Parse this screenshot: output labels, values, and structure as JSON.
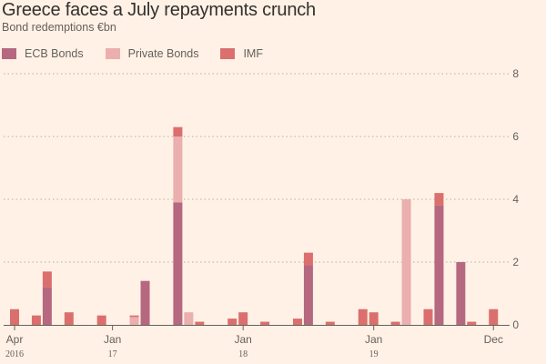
{
  "title": "Greece faces a July repayments crunch",
  "subtitle": "Bond redemptions €bn",
  "legend": [
    {
      "label": "ECB Bonds",
      "color": "#b5687f"
    },
    {
      "label": "Private Bonds",
      "color": "#eaafae"
    },
    {
      "label": "IMF",
      "color": "#db6f6e"
    }
  ],
  "chart_data": {
    "type": "bar",
    "stacked": true,
    "categories": [
      "2016-04",
      "2016-05",
      "2016-06",
      "2016-07",
      "2016-08",
      "2016-09",
      "2016-10",
      "2016-11",
      "2016-12",
      "2017-01",
      "2017-02",
      "2017-03",
      "2017-04",
      "2017-05",
      "2017-06",
      "2017-07",
      "2017-08",
      "2017-09",
      "2017-10",
      "2017-11",
      "2017-12",
      "2018-01",
      "2018-02",
      "2018-03",
      "2018-04",
      "2018-05",
      "2018-06",
      "2018-07",
      "2018-08",
      "2018-09",
      "2018-10",
      "2018-11",
      "2018-12",
      "2019-01",
      "2019-02",
      "2019-03",
      "2019-04",
      "2019-05",
      "2019-06",
      "2019-07",
      "2019-08",
      "2019-09",
      "2019-10",
      "2019-11",
      "2019-12"
    ],
    "series": [
      {
        "name": "ECB Bonds",
        "color": "#b5687f",
        "values": [
          0,
          0,
          0,
          1.2,
          0,
          0,
          0,
          0,
          0,
          0,
          0,
          0,
          1.4,
          0,
          0,
          3.9,
          0,
          0,
          0,
          0,
          0,
          0,
          0,
          0,
          0,
          0,
          0,
          1.9,
          0,
          0,
          0,
          0,
          0,
          0,
          0,
          0,
          0,
          0,
          0,
          3.8,
          0,
          2.0,
          0,
          0,
          0
        ]
      },
      {
        "name": "Private Bonds",
        "color": "#eaafae",
        "values": [
          0,
          0,
          0,
          0,
          0,
          0,
          0,
          0,
          0,
          0,
          0,
          0.25,
          0,
          0,
          0,
          2.1,
          0.4,
          0,
          0,
          0,
          0,
          0,
          0,
          0,
          0,
          0,
          0,
          0,
          0,
          0,
          0,
          0,
          0,
          0,
          0,
          0,
          4.0,
          0,
          0,
          0,
          0,
          0,
          0,
          0,
          0
        ]
      },
      {
        "name": "IMF",
        "color": "#db6f6e",
        "values": [
          0.5,
          0,
          0.3,
          0.5,
          0,
          0.4,
          0,
          0,
          0.3,
          0,
          0,
          0.05,
          0,
          0,
          0,
          0.3,
          0,
          0.1,
          0,
          0,
          0.2,
          0.4,
          0,
          0.1,
          0,
          0,
          0.2,
          0.4,
          0,
          0.1,
          0,
          0,
          0.5,
          0.4,
          0,
          0.1,
          0,
          0,
          0.5,
          0.4,
          0,
          0,
          0.1,
          0,
          0.5
        ]
      }
    ],
    "xticks": [
      {
        "label": "Apr",
        "year": "2016",
        "index": 0
      },
      {
        "label": "Jan",
        "year": "17",
        "index": 9
      },
      {
        "label": "Jan",
        "year": "18",
        "index": 21
      },
      {
        "label": "Jan",
        "year": "19",
        "index": 33
      },
      {
        "label": "Dec",
        "year": "",
        "index": 44
      }
    ],
    "yticks": [
      0,
      2,
      4,
      6,
      8
    ],
    "ylim": [
      0,
      8
    ],
    "grid": true,
    "legend_position": "top-left"
  }
}
